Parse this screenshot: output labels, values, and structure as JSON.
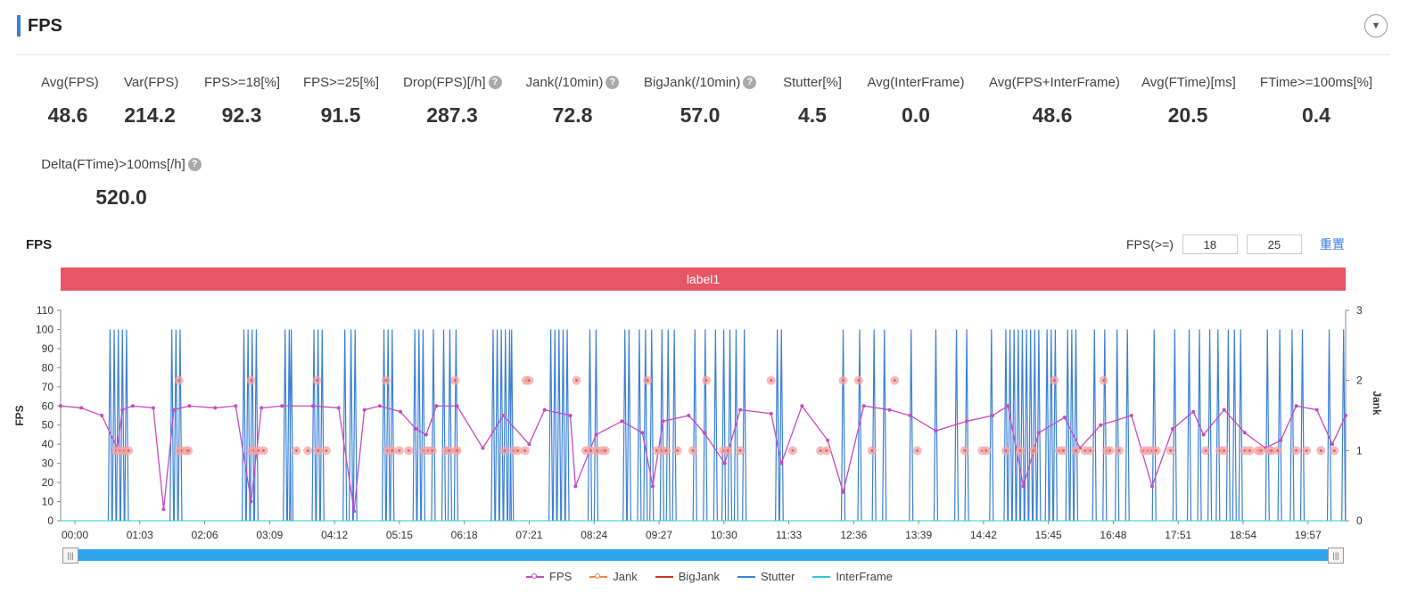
{
  "header": {
    "title": "FPS"
  },
  "metrics": [
    {
      "label": "Avg(FPS)",
      "value": "48.6",
      "help": false
    },
    {
      "label": "Var(FPS)",
      "value": "214.2",
      "help": false
    },
    {
      "label": "FPS>=18[%]",
      "value": "92.3",
      "help": false
    },
    {
      "label": "FPS>=25[%]",
      "value": "91.5",
      "help": false
    },
    {
      "label": "Drop(FPS)[/h]",
      "value": "287.3",
      "help": true
    },
    {
      "label": "Jank(/10min)",
      "value": "72.8",
      "help": true
    },
    {
      "label": "BigJank(/10min)",
      "value": "57.0",
      "help": true
    },
    {
      "label": "Stutter[%]",
      "value": "4.5",
      "help": false
    },
    {
      "label": "Avg(InterFrame)",
      "value": "0.0",
      "help": false
    },
    {
      "label": "Avg(FPS+InterFrame)",
      "value": "48.6",
      "help": false
    },
    {
      "label": "Avg(FTime)[ms]",
      "value": "20.5",
      "help": false
    },
    {
      "label": "FTime>=100ms[%]",
      "value": "0.4",
      "help": false
    },
    {
      "label": "Delta(FTime)>100ms[/h]",
      "value": "520.0",
      "help": true
    }
  ],
  "chart_header": {
    "title": "FPS",
    "filter_label": "FPS(>=)",
    "threshold1": "18",
    "threshold2": "25",
    "reset_label": "重置"
  },
  "help_glyph": "?",
  "chart_data": {
    "type": "line",
    "band_label": "label1",
    "ylabel_left": "FPS",
    "ylabel_right": "Jank",
    "ylim_left": [
      0,
      110
    ],
    "yticks_left": [
      "0",
      "10",
      "20",
      "30",
      "40",
      "50",
      "60",
      "70",
      "80",
      "90",
      "100",
      "110"
    ],
    "ylim_right": [
      0,
      3
    ],
    "yticks_right": [
      "0",
      "1",
      "2",
      "3"
    ],
    "xticks": [
      "00:00",
      "01:03",
      "02:06",
      "03:09",
      "04:12",
      "05:15",
      "06:18",
      "07:21",
      "08:24",
      "09:27",
      "10:30",
      "11:33",
      "12:36",
      "13:39",
      "14:42",
      "15:45",
      "16:48",
      "17:51",
      "18:54",
      "19:57"
    ],
    "duration_s": 1248,
    "legend": [
      "FPS",
      "Jank",
      "BigJank",
      "Stutter",
      "InterFrame"
    ],
    "colors": {
      "FPS": "#c64bbf",
      "Jank": "#f08a3c",
      "BigJank": "#c0392b",
      "Stutter": "#3a7fd8",
      "InterFrame": "#2ec7d8",
      "jank_marker": "#f3a4a4",
      "band": "#e85565",
      "slider": "#2ea3ee"
    },
    "series": [
      {
        "name": "FPS",
        "description": "fluctuates mostly between 35 and 62, with sharp drops to near 0 at recurring intervals",
        "values": [
          [
            0,
            60
          ],
          [
            20,
            59
          ],
          [
            40,
            55
          ],
          [
            55,
            38
          ],
          [
            60,
            58
          ],
          [
            70,
            60
          ],
          [
            90,
            59
          ],
          [
            100,
            6
          ],
          [
            110,
            58
          ],
          [
            125,
            60
          ],
          [
            150,
            59
          ],
          [
            170,
            60
          ],
          [
            185,
            10
          ],
          [
            195,
            59
          ],
          [
            215,
            60
          ],
          [
            245,
            60
          ],
          [
            270,
            59
          ],
          [
            285,
            5
          ],
          [
            295,
            58
          ],
          [
            310,
            60
          ],
          [
            330,
            57
          ],
          [
            345,
            48
          ],
          [
            355,
            45
          ],
          [
            365,
            60
          ],
          [
            385,
            60
          ],
          [
            410,
            38
          ],
          [
            430,
            55
          ],
          [
            455,
            40
          ],
          [
            470,
            58
          ],
          [
            495,
            55
          ],
          [
            500,
            18
          ],
          [
            520,
            45
          ],
          [
            545,
            52
          ],
          [
            565,
            46
          ],
          [
            575,
            18
          ],
          [
            585,
            52
          ],
          [
            610,
            55
          ],
          [
            625,
            46
          ],
          [
            645,
            30
          ],
          [
            660,
            58
          ],
          [
            690,
            56
          ],
          [
            700,
            30
          ],
          [
            720,
            60
          ],
          [
            745,
            42
          ],
          [
            760,
            15
          ],
          [
            780,
            60
          ],
          [
            805,
            58
          ],
          [
            825,
            55
          ],
          [
            850,
            47
          ],
          [
            880,
            52
          ],
          [
            905,
            55
          ],
          [
            920,
            60
          ],
          [
            935,
            18
          ],
          [
            950,
            46
          ],
          [
            975,
            54
          ],
          [
            990,
            38
          ],
          [
            1010,
            50
          ],
          [
            1040,
            55
          ],
          [
            1060,
            18
          ],
          [
            1080,
            48
          ],
          [
            1100,
            57
          ],
          [
            1110,
            45
          ],
          [
            1130,
            58
          ],
          [
            1150,
            46
          ],
          [
            1170,
            38
          ],
          [
            1185,
            42
          ],
          [
            1200,
            60
          ],
          [
            1220,
            58
          ],
          [
            1235,
            40
          ],
          [
            1248,
            55
          ]
        ]
      },
      {
        "name": "Jank",
        "values": [
          [
            0,
            0
          ],
          [
            1248,
            0
          ]
        ]
      },
      {
        "name": "BigJank",
        "values": [
          [
            0,
            0
          ],
          [
            1248,
            0
          ]
        ]
      },
      {
        "name": "Stutter",
        "description": "vertical spikes to 100 at drop events",
        "spike_times": [
          48,
          52,
          56,
          60,
          64,
          108,
          112,
          116,
          178,
          182,
          186,
          190,
          218,
          222,
          224,
          246,
          250,
          254,
          276,
          282,
          286,
          314,
          318,
          322,
          344,
          348,
          352,
          362,
          372,
          378,
          384,
          420,
          424,
          428,
          432,
          436,
          438,
          476,
          480,
          484,
          488,
          492,
          514,
          520,
          548,
          552,
          562,
          568,
          574,
          584,
          590,
          596,
          616,
          626,
          636,
          644,
          650,
          656,
          664,
          696,
          700,
          760,
          776,
          790,
          800,
          826,
          850,
          870,
          880,
          904,
          918,
          922,
          926,
          930,
          934,
          938,
          942,
          946,
          950,
          958,
          962,
          966,
          978,
          982,
          986,
          1004,
          1014,
          1026,
          1036,
          1062,
          1082,
          1096,
          1106,
          1116,
          1124,
          1134,
          1140,
          1146,
          1172,
          1184,
          1196,
          1206,
          1232,
          1246
        ]
      },
      {
        "name": "InterFrame",
        "values": [
          [
            0,
            0
          ],
          [
            1248,
            0
          ]
        ]
      }
    ],
    "jank_events_high": [
      115,
      185,
      249,
      316,
      383,
      452,
      455,
      501,
      570,
      627,
      690,
      760,
      775,
      810,
      965,
      1013
    ],
    "jank_events_low": [
      54,
      58,
      62,
      66,
      115,
      118,
      122,
      124,
      185,
      188,
      192,
      197,
      229,
      240,
      250,
      258,
      318,
      322,
      329,
      338,
      353,
      357,
      361,
      374,
      377,
      384,
      385,
      431,
      440,
      444,
      451,
      510,
      515,
      521,
      526,
      529,
      579,
      584,
      588,
      599,
      614,
      644,
      648,
      660,
      711,
      738,
      744,
      788,
      832,
      878,
      895,
      899,
      918,
      932,
      945,
      970,
      974,
      986,
      995,
      1000,
      1016,
      1019,
      1028,
      1052,
      1056,
      1060,
      1064,
      1078,
      1112,
      1126,
      1130,
      1150,
      1155,
      1163,
      1166,
      1174,
      1176,
      1182,
      1200,
      1210,
      1224,
      1237
    ]
  },
  "legend_items": [
    "FPS",
    "Jank",
    "BigJank",
    "Stutter",
    "InterFrame"
  ],
  "slider": {
    "left_handle": "|||",
    "right_handle": "|||"
  }
}
